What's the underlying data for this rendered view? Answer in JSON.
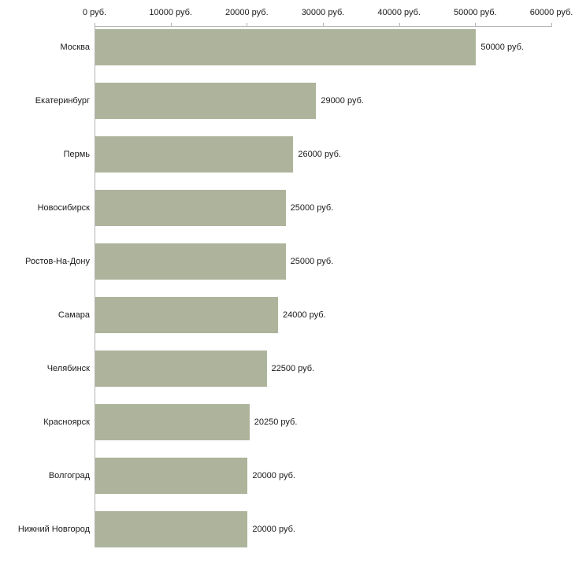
{
  "chart_data": {
    "type": "bar",
    "orientation": "horizontal",
    "categories": [
      "Москва",
      "Екатеринбург",
      "Пермь",
      "Новосибирск",
      "Ростов-На-Дону",
      "Самара",
      "Челябинск",
      "Красноярск",
      "Волгоград",
      "Нижний Новгород"
    ],
    "values": [
      50000,
      29000,
      26000,
      25000,
      25000,
      24000,
      22500,
      20250,
      20000,
      20000
    ],
    "value_labels": [
      "50000 руб.",
      "29000 руб.",
      "26000 руб.",
      "25000 руб.",
      "25000 руб.",
      "24000 руб.",
      "22500 руб.",
      "20250 руб.",
      "20000 руб.",
      "20000 руб."
    ],
    "x_ticks": [
      0,
      10000,
      20000,
      30000,
      40000,
      50000,
      60000
    ],
    "x_tick_labels": [
      "0 руб.",
      "10000 руб.",
      "20000 руб.",
      "30000 руб.",
      "40000 руб.",
      "50000 руб.",
      "60000 руб."
    ],
    "xlim": [
      0,
      60000
    ],
    "unit": "руб.",
    "bar_color": "#adb49b",
    "axis_color": "#b3b3b3",
    "text_color": "#1a1a1a",
    "grid": false,
    "legend": false
  }
}
